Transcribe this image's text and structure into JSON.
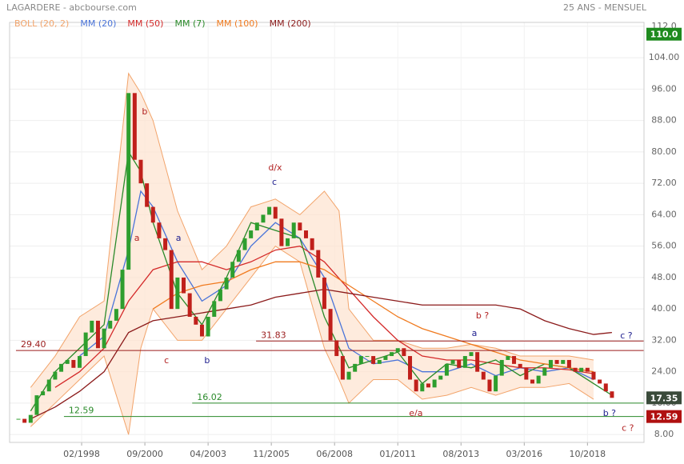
{
  "chart_data": {
    "type": "candlestick",
    "title": "LAGARDERE - abcbourse.com",
    "subtitle": "25 ANS - MENSUEL",
    "xlim": [
      1995.14,
      2021.06
    ],
    "ylim": [
      6,
      113
    ],
    "xticks": [
      {
        "value": 1998.083,
        "label": "02/1998"
      },
      {
        "value": 2000.667,
        "label": "09/2000"
      },
      {
        "value": 2003.25,
        "label": "04/2003"
      },
      {
        "value": 2005.833,
        "label": "11/2005"
      },
      {
        "value": 2008.417,
        "label": "06/2008"
      },
      {
        "value": 2011.0,
        "label": "01/2011"
      },
      {
        "value": 2013.583,
        "label": "08/2013"
      },
      {
        "value": 2016.167,
        "label": "03/2016"
      },
      {
        "value": 2018.75,
        "label": "10/2018"
      }
    ],
    "yticks": [
      {
        "value": 8,
        "label": "8.00"
      },
      {
        "value": 16,
        "label": "16.00"
      },
      {
        "value": 24,
        "label": "24.00"
      },
      {
        "value": 32,
        "label": "32.00"
      },
      {
        "value": 40,
        "label": "40.00"
      },
      {
        "value": 48,
        "label": "48.00"
      },
      {
        "value": 56,
        "label": "56.00"
      },
      {
        "value": 64,
        "label": "64.00"
      },
      {
        "value": 72,
        "label": "72.00"
      },
      {
        "value": 80,
        "label": "80.00"
      },
      {
        "value": 88,
        "label": "88.00"
      },
      {
        "value": 96,
        "label": "96.00"
      },
      {
        "value": 104,
        "label": "104.00"
      },
      {
        "value": 112,
        "label": "112.0"
      }
    ],
    "grid": true,
    "up_color": "#2e9e2e",
    "down_color": "#c0201b",
    "x": [
      1995.5,
      1995.75,
      1996,
      1996.25,
      1996.5,
      1996.75,
      1997,
      1997.25,
      1997.5,
      1997.75,
      1998,
      1998.25,
      1998.5,
      1998.75,
      1999,
      1999.25,
      1999.5,
      1999.75,
      2000,
      2000.25,
      2000.5,
      2000.75,
      2001,
      2001.25,
      2001.5,
      2001.75,
      2002,
      2002.25,
      2002.5,
      2002.75,
      2003,
      2003.25,
      2003.5,
      2003.75,
      2004,
      2004.25,
      2004.5,
      2004.75,
      2005,
      2005.25,
      2005.5,
      2005.75,
      2006,
      2006.25,
      2006.5,
      2006.75,
      2007,
      2007.25,
      2007.5,
      2007.75,
      2008,
      2008.25,
      2008.5,
      2008.75,
      2009,
      2009.25,
      2009.5,
      2009.75,
      2010,
      2010.25,
      2010.5,
      2010.75,
      2011,
      2011.25,
      2011.5,
      2011.75,
      2012,
      2012.25,
      2012.5,
      2012.75,
      2013,
      2013.25,
      2013.5,
      2013.75,
      2014,
      2014.25,
      2014.5,
      2014.75,
      2015,
      2015.25,
      2015.5,
      2015.75,
      2016,
      2016.25,
      2016.5,
      2016.75,
      2017,
      2017.25,
      2017.5,
      2017.75,
      2018,
      2018.25,
      2018.5,
      2018.75,
      2019,
      2019.25,
      2019.5,
      2019.75
    ],
    "values": [
      12,
      11,
      13,
      18,
      19,
      22,
      24,
      26,
      27,
      25,
      28,
      34,
      37,
      30,
      35,
      37,
      40,
      50,
      95,
      78,
      72,
      66,
      62,
      58,
      55,
      40,
      48,
      44,
      38,
      36,
      33,
      38,
      42,
      45,
      48,
      52,
      55,
      58,
      60,
      62,
      64,
      66,
      63,
      56,
      58,
      62,
      60,
      58,
      55,
      48,
      40,
      32,
      28,
      22,
      24,
      26,
      28,
      28,
      26,
      27,
      28,
      29,
      30,
      28,
      22,
      19,
      21,
      20,
      22,
      23,
      26,
      27,
      25,
      28,
      29,
      24,
      22,
      19,
      23,
      27,
      28,
      26,
      25,
      22,
      21,
      23,
      25,
      27,
      26,
      27,
      25,
      24,
      25,
      24,
      22,
      21,
      19,
      17.35
    ],
    "bollinger": {
      "name": "BOLL (20, 2)",
      "color": "#f2a46b",
      "fill": "#fde3cf",
      "x": [
        1996,
        1997,
        1998,
        1999,
        2000,
        2000.5,
        2001,
        2002,
        2003,
        2004,
        2005,
        2006,
        2007,
        2008,
        2008.6,
        2009,
        2010,
        2011,
        2012,
        2013,
        2014,
        2015,
        2016,
        2017,
        2018,
        2019
      ],
      "upper": [
        20,
        28,
        38,
        42,
        100,
        95,
        88,
        65,
        50,
        56,
        66,
        68,
        64,
        70,
        65,
        40,
        32,
        32,
        30,
        30,
        31,
        30,
        28,
        28,
        28,
        27
      ],
      "lower": [
        10,
        16,
        22,
        28,
        8,
        30,
        40,
        32,
        32,
        40,
        48,
        56,
        52,
        30,
        22,
        16,
        22,
        22,
        17,
        18,
        20,
        18,
        20,
        20,
        21,
        17
      ]
    },
    "series": [
      {
        "name": "MM (20)",
        "color": "#4a74d9",
        "x": [
          1998,
          1999,
          2000,
          2000.5,
          2001,
          2002,
          2003,
          2004,
          2005,
          2006,
          2007,
          2008,
          2009,
          2010,
          2011,
          2012,
          2013,
          2014,
          2015,
          2016,
          2017,
          2018,
          2019
        ],
        "values": [
          28,
          33,
          55,
          70,
          66,
          52,
          42,
          46,
          56,
          62,
          58,
          48,
          30,
          26,
          27,
          24,
          24,
          26,
          23,
          25,
          24,
          25,
          22
        ]
      },
      {
        "name": "MM (50)",
        "color": "#d42a2a",
        "x": [
          1997,
          1998,
          1999,
          2000,
          2001,
          2002,
          2003,
          2004,
          2005,
          2006,
          2007,
          2008,
          2009,
          2010,
          2011,
          2012,
          2013,
          2014,
          2015,
          2016,
          2017,
          2018,
          2019
        ],
        "values": [
          20,
          24,
          30,
          42,
          50,
          52,
          52,
          50,
          52,
          55,
          56,
          52,
          45,
          38,
          32,
          28,
          27,
          27,
          26,
          25,
          25,
          24.5,
          23.5
        ]
      },
      {
        "name": "MM (7)",
        "color": "#2a8a2a",
        "x": [
          1996,
          1997,
          1998,
          1999,
          2000,
          2000.5,
          2001,
          2002,
          2003,
          2004,
          2005,
          2006,
          2007,
          2008,
          2009,
          2010,
          2011,
          2012,
          2013,
          2014,
          2015,
          2016,
          2017,
          2018,
          2019,
          2019.75
        ],
        "values": [
          14,
          24,
          30,
          36,
          80,
          75,
          62,
          44,
          36,
          48,
          62,
          60,
          58,
          38,
          25,
          27,
          29,
          21,
          26,
          25,
          27,
          23,
          26,
          25,
          21,
          18
        ]
      },
      {
        "name": "MM (100)",
        "color": "#f07a1e",
        "x": [
          2001,
          2002,
          2003,
          2004,
          2005,
          2006,
          2007,
          2008,
          2009,
          2010,
          2011,
          2012,
          2013,
          2014,
          2015,
          2016,
          2017,
          2018,
          2019
        ],
        "values": [
          40,
          44,
          46,
          47,
          50,
          52,
          52,
          50,
          46,
          42,
          38,
          35,
          33,
          31,
          29,
          27,
          26,
          25,
          24
        ]
      },
      {
        "name": "MM (200)",
        "color": "#8b1a1a",
        "x": [
          1996,
          1997,
          1998,
          1999,
          2000,
          2001,
          2002,
          2003,
          2004,
          2005,
          2006,
          2007,
          2008,
          2009,
          2010,
          2011,
          2012,
          2013,
          2014,
          2015,
          2016,
          2017,
          2018,
          2019,
          2019.75
        ],
        "values": [
          12,
          15,
          19,
          24,
          34,
          37,
          38,
          39,
          40,
          41,
          43,
          44,
          45,
          44,
          43,
          42,
          41,
          41,
          41,
          41,
          40,
          37,
          35,
          33.5,
          34
        ]
      }
    ],
    "levels": [
      {
        "value": 31.83,
        "label": "31.83",
        "color": "#9b1c1c",
        "x_start": 2005.21
      },
      {
        "value": 29.4,
        "label": "29.40",
        "color": "#9b1c1c",
        "x_start": 1995.4
      },
      {
        "value": 16.02,
        "label": "16.02",
        "color": "#2a8a2a",
        "x_start": 2002.6
      },
      {
        "value": 12.59,
        "label": "12.59",
        "color": "#2a8a2a",
        "x_start": 1997.36
      }
    ],
    "price_tags": [
      {
        "value": 110,
        "label": "110.0",
        "color": "#1e8a1e"
      },
      {
        "value": 17.35,
        "label": "17.35",
        "color": "#3a4a3a"
      },
      {
        "value": 12.59,
        "label": "12.59",
        "color": "#b01010"
      }
    ],
    "annotations": [
      {
        "text": "b",
        "x": 2000.66,
        "y": 90.2,
        "color": "#b22222"
      },
      {
        "text": "a",
        "x": 2000.34,
        "y": 58.0,
        "color": "#b22222"
      },
      {
        "text": "a",
        "x": 2002.04,
        "y": 58.0,
        "color": "#1f1f8f"
      },
      {
        "text": "c",
        "x": 2001.55,
        "y": 26.8,
        "color": "#b22222"
      },
      {
        "text": "b",
        "x": 2003.21,
        "y": 26.8,
        "color": "#1f1f8f"
      },
      {
        "text": "d/x",
        "x": 2005.99,
        "y": 75.9,
        "color": "#b22222"
      },
      {
        "text": "c",
        "x": 2005.96,
        "y": 72.2,
        "color": "#1f1f8f"
      },
      {
        "text": "b ?",
        "x": 2014.46,
        "y": 38.2,
        "color": "#b22222"
      },
      {
        "text": "a",
        "x": 2014.13,
        "y": 33.7,
        "color": "#1f1f8f"
      },
      {
        "text": "e/a",
        "x": 2011.74,
        "y": 13.3,
        "color": "#b22222"
      },
      {
        "text": "c ?",
        "x": 2020.34,
        "y": 33.1,
        "color": "#1f1f8f"
      },
      {
        "text": "b ?",
        "x": 2019.65,
        "y": 13.3,
        "color": "#1f1f8f"
      },
      {
        "text": "c ?",
        "x": 2020.4,
        "y": 9.6,
        "color": "#b22222"
      }
    ]
  }
}
